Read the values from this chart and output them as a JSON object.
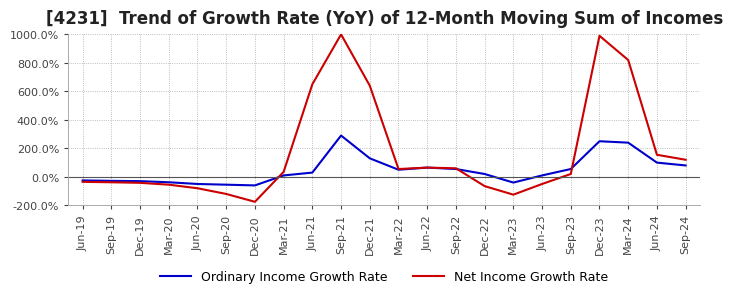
{
  "title": "[4231]  Trend of Growth Rate (YoY) of 12-Month Moving Sum of Incomes",
  "title_fontsize": 12,
  "ylim": [
    -200,
    1000
  ],
  "yticks": [
    -200,
    0,
    200,
    400,
    600,
    800,
    1000
  ],
  "background_color": "#ffffff",
  "grid_color": "#aaaaaa",
  "legend_labels": [
    "Ordinary Income Growth Rate",
    "Net Income Growth Rate"
  ],
  "line_colors": [
    "#0000cc",
    "#cc0000"
  ],
  "dates": [
    "Jun-19",
    "Sep-19",
    "Dec-19",
    "Mar-20",
    "Jun-20",
    "Sep-20",
    "Dec-20",
    "Mar-21",
    "Jun-21",
    "Sep-21",
    "Dec-21",
    "Mar-22",
    "Jun-22",
    "Sep-22",
    "Dec-22",
    "Mar-23",
    "Jun-23",
    "Sep-23",
    "Dec-23",
    "Mar-24",
    "Jun-24",
    "Sep-24"
  ],
  "ordinary_income_gr": [
    -25,
    -28,
    -30,
    -38,
    -50,
    -55,
    -60,
    10,
    30,
    290,
    130,
    50,
    65,
    55,
    20,
    -40,
    10,
    55,
    250,
    240,
    100,
    80
  ],
  "net_income_gr": [
    -35,
    -38,
    -42,
    -55,
    -80,
    -120,
    -175,
    35,
    650,
    1000,
    640,
    55,
    65,
    60,
    -65,
    -125,
    -50,
    20,
    990,
    820,
    155,
    120
  ]
}
